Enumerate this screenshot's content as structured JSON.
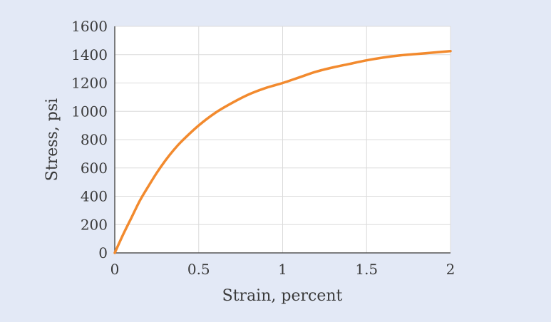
{
  "chart_data": {
    "type": "line",
    "title": "",
    "xlabel": "Strain, percent",
    "ylabel": "Stress, psi",
    "xlim": [
      0,
      2
    ],
    "ylim": [
      0,
      1600
    ],
    "xticks": [
      0,
      0.5,
      1,
      1.5,
      2
    ],
    "xtick_labels": [
      "0",
      "0.5",
      "1",
      "1.5",
      "2"
    ],
    "yticks": [
      0,
      200,
      400,
      600,
      800,
      1000,
      1200,
      1400,
      1600
    ],
    "ytick_labels": [
      "0",
      "200",
      "400",
      "600",
      "800",
      "1000",
      "1200",
      "1400",
      "1600"
    ],
    "grid": true,
    "legend": "none",
    "colors": {
      "line": "#f28a2e",
      "plot_bg": "#ffffff",
      "grid": "#dcdcdc",
      "page_bg": "#e3e9f6"
    },
    "series": [
      {
        "x": [
          0,
          0.05,
          0.1,
          0.15,
          0.2,
          0.25,
          0.3,
          0.35,
          0.4,
          0.5,
          0.6,
          0.7,
          0.8,
          0.9,
          1.0,
          1.1,
          1.2,
          1.3,
          1.4,
          1.5,
          1.6,
          1.7,
          1.8,
          1.9,
          2.0
        ],
        "y": [
          0,
          130,
          250,
          370,
          470,
          565,
          650,
          725,
          790,
          900,
          990,
          1060,
          1120,
          1165,
          1200,
          1240,
          1280,
          1310,
          1335,
          1360,
          1380,
          1395,
          1405,
          1415,
          1425
        ]
      }
    ]
  }
}
